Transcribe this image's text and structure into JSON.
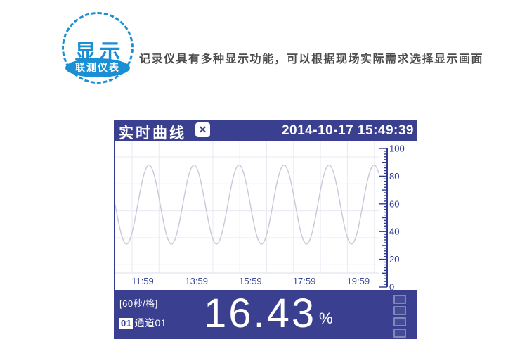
{
  "badge": {
    "title": "显示",
    "ribbon": "联测仪表",
    "accent_color": "#1b8fd3"
  },
  "intro": {
    "text": "记录仪具有多种显示功能，可以根据现场实际需求选择显示画面"
  },
  "device": {
    "bar_color": "#3a408f",
    "title_bar": {
      "title": "实时曲线",
      "close_glyph": "✕",
      "datetime": "2014-10-17 15:49:39"
    },
    "footer": {
      "interval": "[60秒/格]",
      "channel_no": "01",
      "channel_name": "通道01",
      "value": "16.43",
      "unit": "%",
      "indicator_count": 4
    }
  },
  "chart_data": {
    "type": "line",
    "title": "实时曲线",
    "x_tick_labels": [
      "11:59",
      "13:59",
      "15:59",
      "17:59",
      "19:59"
    ],
    "y_ticks": [
      0,
      20,
      40,
      60,
      80,
      100
    ],
    "ylim": [
      0,
      100
    ],
    "y_minor_step": 2,
    "grid": true,
    "legend": "none",
    "axis_color": "#2e3a92",
    "grid_color": "#e9eaf2",
    "line_color": "#c7c9da",
    "series": [
      {
        "name": "通道01",
        "waveform": "sine",
        "mean": 59.5,
        "amplitude": 28.5,
        "min": 31,
        "max": 88,
        "visible_cycles": 5.9,
        "current_value": 16.43,
        "unit": "%"
      }
    ]
  }
}
